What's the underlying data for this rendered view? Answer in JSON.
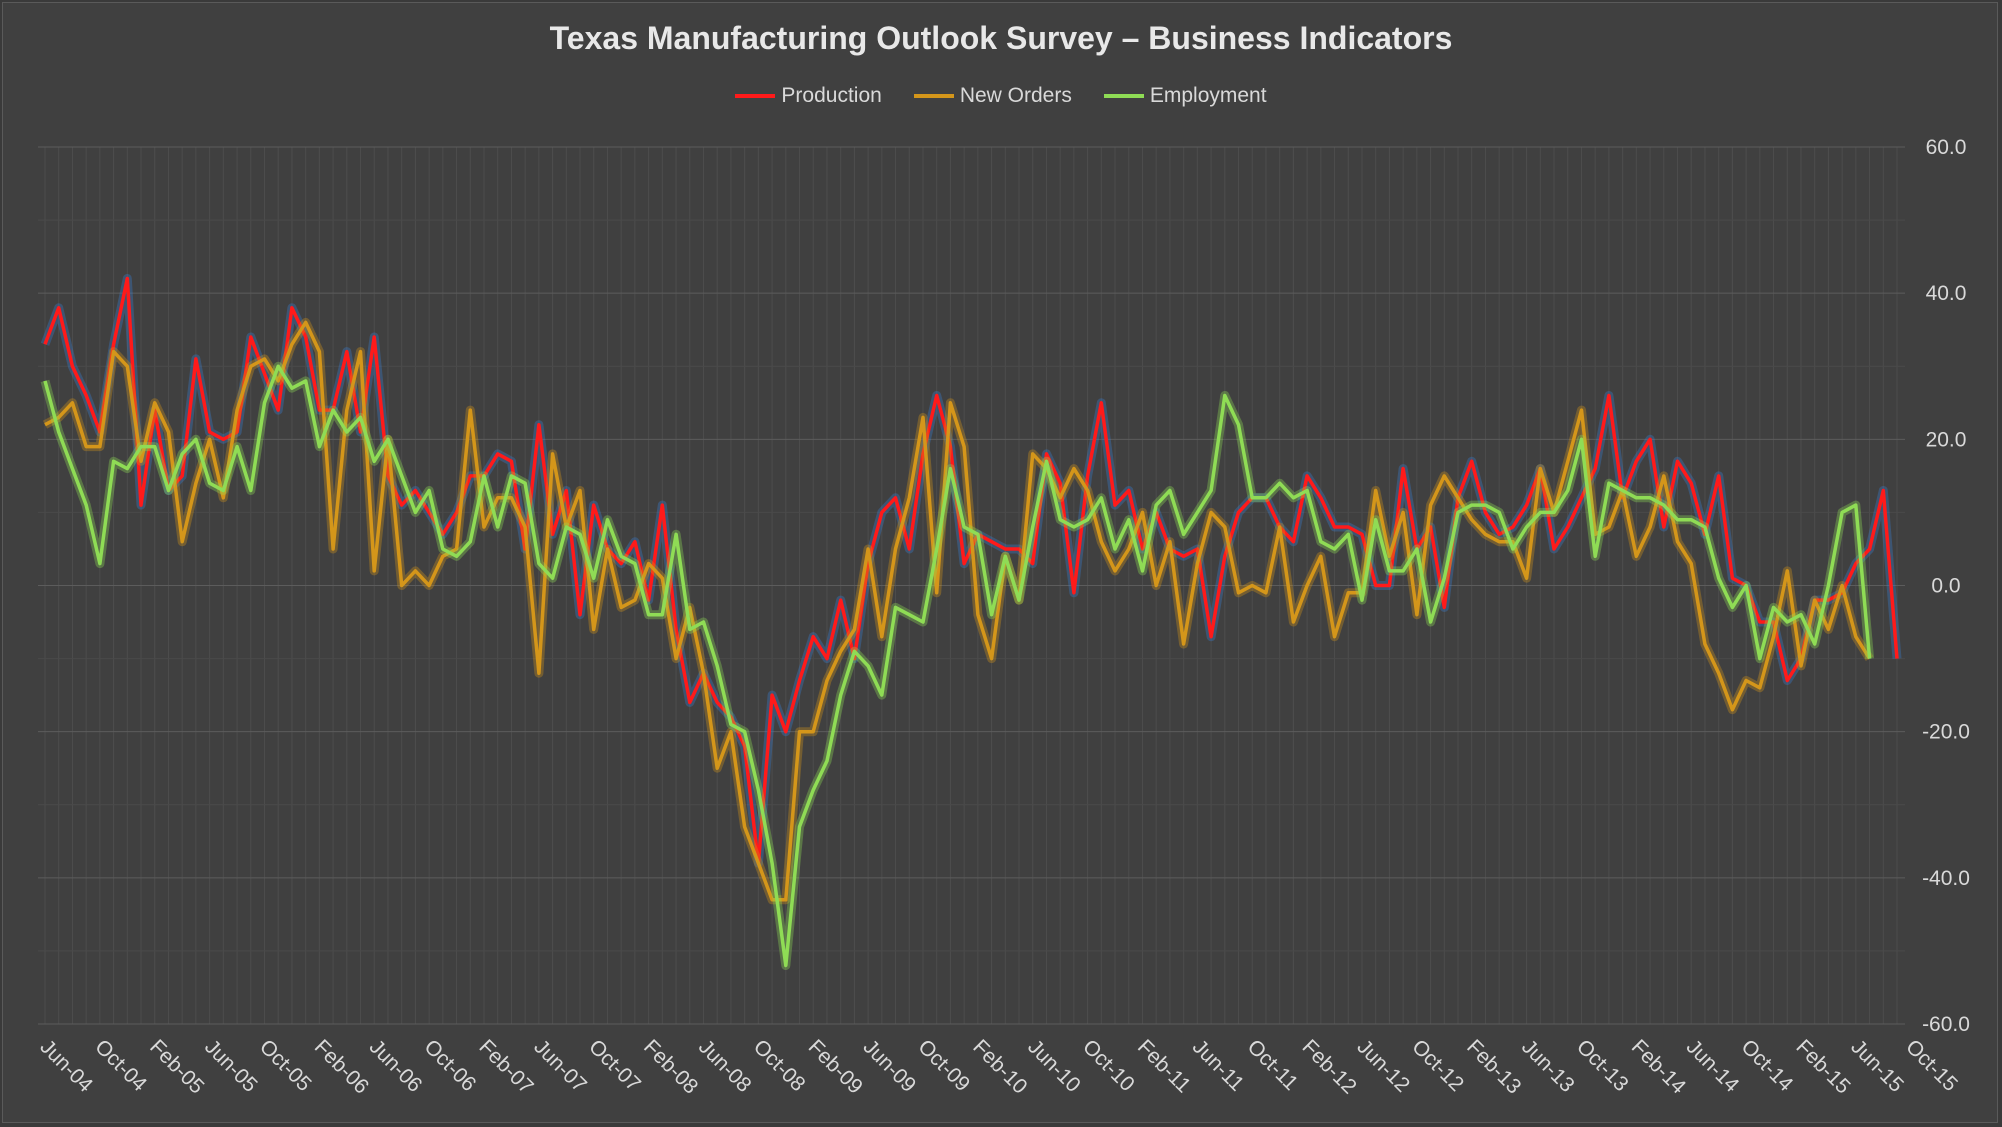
{
  "colors": {
    "production": "#ff1a1a",
    "new_orders": "#d4961a",
    "employment": "#8fdc55",
    "background": "#404040",
    "grid": "#5c5c5c",
    "text": "#d9d9d9"
  },
  "chart_data": {
    "type": "line",
    "title": "Texas Manufacturing Outlook Survey – Business Indicators",
    "xlabel": "",
    "ylabel": "",
    "ylim": [
      -60,
      60
    ],
    "y_ticks": [
      "60.0",
      "40.0",
      "20.0",
      "0.0",
      "-20.0",
      "-40.0",
      "-60.0"
    ],
    "y_tick_values": [
      60,
      40,
      20,
      0,
      -20,
      -40,
      -60
    ],
    "y_axis_position": "right",
    "legend_position": "top-center",
    "grid": true,
    "x_start": "Jun-04",
    "x_end": "Dec-15",
    "x_tick_labels": [
      "Jun-04",
      "Oct-04",
      "Feb-05",
      "Jun-05",
      "Oct-05",
      "Feb-06",
      "Jun-06",
      "Oct-06",
      "Feb-07",
      "Jun-07",
      "Oct-07",
      "Feb-08",
      "Jun-08",
      "Oct-08",
      "Feb-09",
      "Jun-09",
      "Oct-09",
      "Feb-10",
      "Jun-10",
      "Oct-10",
      "Feb-11",
      "Jun-11",
      "Oct-11",
      "Feb-12",
      "Jun-12",
      "Oct-12",
      "Feb-13",
      "Jun-13",
      "Oct-13",
      "Feb-14",
      "Jun-14",
      "Oct-14",
      "Feb-15",
      "Jun-15",
      "Oct-15"
    ],
    "series": [
      {
        "name": "Production",
        "color_key": "production",
        "values": [
          33,
          38,
          30,
          26,
          21,
          33,
          42,
          11,
          24,
          13,
          15,
          31,
          21,
          20,
          21,
          34,
          29,
          24,
          38,
          34,
          24,
          24,
          32,
          21,
          34,
          15,
          11,
          13,
          10,
          7,
          10,
          15,
          15,
          18,
          17,
          5,
          22,
          7,
          13,
          -4,
          11,
          5,
          3,
          6,
          -2,
          11,
          -6,
          -16,
          -12,
          -16,
          -18,
          -22,
          -38,
          -15,
          -20,
          -13,
          -7,
          -10,
          -2,
          -10,
          3,
          10,
          12,
          5,
          18,
          26,
          19,
          3,
          7,
          6,
          5,
          5,
          3,
          18,
          14,
          -1,
          15,
          25,
          11,
          13,
          5,
          10,
          5,
          4,
          5,
          -7,
          4,
          10,
          12,
          12,
          8,
          6,
          15,
          12,
          8,
          8,
          7,
          0,
          0,
          16,
          5,
          8,
          -3,
          12,
          17,
          10,
          7,
          8,
          11,
          16,
          5,
          8,
          12,
          16,
          26,
          12,
          17,
          20,
          8,
          17,
          14,
          7,
          15,
          1,
          0,
          -5,
          -5,
          -13,
          -10,
          -2,
          -2,
          -1,
          3,
          5,
          13,
          -10
        ],
        "glow": "#3a7fd0"
      },
      {
        "name": "New Orders",
        "color_key": "new_orders",
        "values": [
          22,
          23,
          25,
          19,
          19,
          32,
          30,
          17,
          25,
          21,
          6,
          14,
          20,
          12,
          24,
          30,
          31,
          28,
          33,
          36,
          32,
          5,
          24,
          32,
          2,
          20,
          0,
          2,
          0,
          4,
          5,
          24,
          8,
          12,
          12,
          8,
          -12,
          18,
          8,
          13,
          -6,
          5,
          -3,
          -2,
          3,
          1,
          -10,
          -3,
          -12,
          -25,
          -20,
          -33,
          -38,
          -43,
          -43,
          -20,
          -20,
          -13,
          -9,
          -6,
          5,
          -7,
          5,
          12,
          23,
          -1,
          25,
          19,
          -4,
          -10,
          4,
          -2,
          18,
          16,
          12,
          16,
          13,
          6,
          2,
          5,
          10,
          0,
          6,
          -8,
          3,
          10,
          8,
          -1,
          0,
          -1,
          8,
          -5,
          0,
          4,
          -7,
          -1,
          -1,
          13,
          4,
          10,
          -4,
          11,
          15,
          12,
          9,
          7,
          6,
          6,
          1,
          16,
          10,
          17,
          24,
          7,
          8,
          13,
          4,
          8,
          15,
          6,
          3,
          -8,
          -12,
          -17,
          -13,
          -14,
          -7,
          2,
          -11,
          -2,
          -6,
          0,
          -7,
          -10
        ],
        "glow": "#d4961a"
      },
      {
        "name": "Employment",
        "color_key": "employment",
        "values": [
          28,
          21,
          16,
          11,
          3,
          17,
          16,
          19,
          19,
          13,
          18,
          20,
          14,
          13,
          19,
          13,
          25,
          30,
          27,
          28,
          19,
          24,
          21,
          23,
          17,
          20,
          15,
          10,
          13,
          5,
          4,
          6,
          15,
          8,
          15,
          14,
          3,
          1,
          8,
          7,
          1,
          9,
          4,
          3,
          -4,
          -4,
          7,
          -6,
          -5,
          -11,
          -19,
          -20,
          -28,
          -38,
          -52,
          -33,
          -28,
          -24,
          -15,
          -9,
          -11,
          -15,
          -3,
          -4,
          -5,
          5,
          16,
          8,
          7,
          -4,
          4,
          -2,
          8,
          17,
          9,
          8,
          9,
          12,
          5,
          9,
          2,
          11,
          13,
          7,
          10,
          13,
          26,
          22,
          12,
          12,
          14,
          12,
          13,
          6,
          5,
          7,
          -2,
          9,
          2,
          2,
          5,
          -5,
          1,
          10,
          11,
          11,
          10,
          5,
          8,
          10,
          10,
          13,
          20,
          4,
          14,
          13,
          12,
          12,
          11,
          9,
          9,
          8,
          1,
          -3,
          0,
          -10,
          -3,
          -5,
          -4,
          -8,
          0,
          10,
          11,
          -10
        ],
        "glow": "#8fdc55"
      }
    ]
  }
}
